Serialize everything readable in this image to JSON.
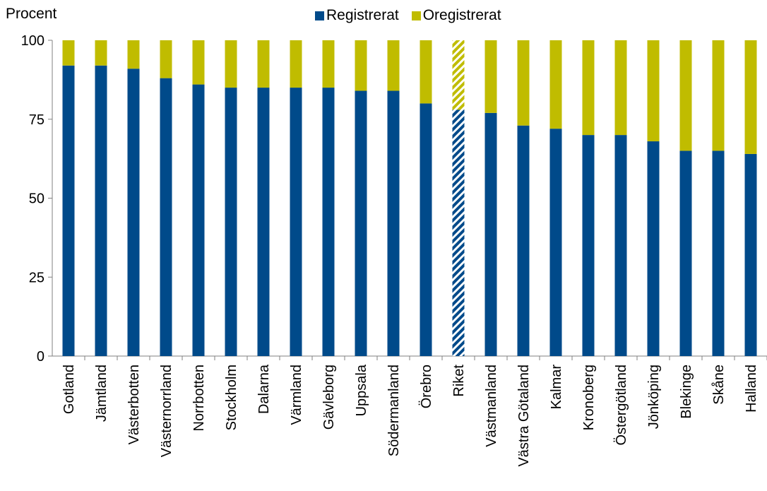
{
  "chart_data": {
    "type": "bar",
    "stacked": true,
    "ylabel": "Procent",
    "ylim": [
      0,
      100
    ],
    "yticks": [
      0,
      25,
      50,
      75,
      100
    ],
    "grid": false,
    "legend_position": "top",
    "categories": [
      "Gotland",
      "Jämtland",
      "Västerbotten",
      "Västernorrland",
      "Norrbotten",
      "Stockholm",
      "Dalarna",
      "Värmland",
      "Gävleborg",
      "Uppsala",
      "Södermanland",
      "Örebro",
      "Riket",
      "Västmanland",
      "Västra Götaland",
      "Kalmar",
      "Kronoberg",
      "Östergötland",
      "Jönköping",
      "Blekinge",
      "Skåne",
      "Halland"
    ],
    "highlighted_category": "Riket",
    "series": [
      {
        "name": "Registrerat",
        "color": "#004a8a",
        "values": [
          92,
          92,
          91,
          88,
          86,
          85,
          85,
          85,
          85,
          84,
          84,
          80,
          78,
          77,
          73,
          72,
          70,
          70,
          68,
          65,
          65,
          64
        ]
      },
      {
        "name": "Oregistrerat",
        "color": "#c0bc00",
        "values": [
          8,
          8,
          9,
          12,
          14,
          15,
          15,
          15,
          15,
          16,
          16,
          20,
          22,
          23,
          27,
          28,
          30,
          30,
          32,
          35,
          35,
          36
        ]
      }
    ]
  }
}
